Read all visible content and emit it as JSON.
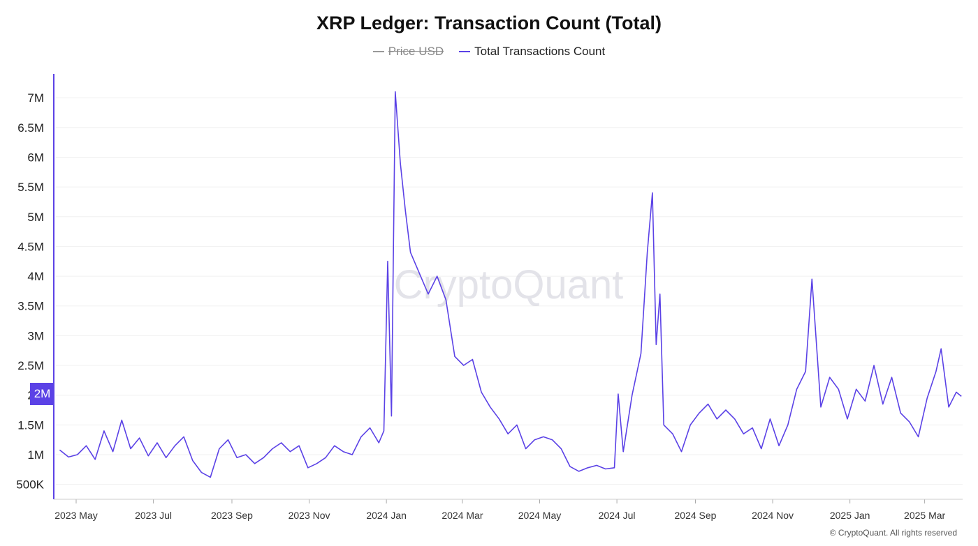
{
  "header": {
    "title": "XRP Ledger: Transaction Count (Total)"
  },
  "legend": [
    {
      "label": "Price USD",
      "color": "#999999",
      "enabled": false
    },
    {
      "label": "Total Transactions Count",
      "color": "#5b42e6",
      "enabled": true
    }
  ],
  "watermark": "CryptoQuant",
  "copyright": "© CryptoQuant. All rights reserved",
  "current_badge": "2M",
  "chart_data": {
    "type": "line",
    "title": "XRP Ledger: Transaction Count (Total)",
    "xlabel": "",
    "ylabel": "",
    "x_range": [
      "2023-04-15",
      "2025-03-31"
    ],
    "ylim": [
      250000,
      7400000
    ],
    "y_ticks": [
      500000,
      1000000,
      1500000,
      2000000,
      2500000,
      3000000,
      3500000,
      4000000,
      4500000,
      5000000,
      5500000,
      6000000,
      6500000,
      7000000
    ],
    "y_tick_labels": [
      "500K",
      "1M",
      "1.5M",
      "2M",
      "2.5M",
      "3M",
      "3.5M",
      "4M",
      "4.5M",
      "5M",
      "5.5M",
      "6M",
      "6.5M",
      "7M"
    ],
    "x_ticks": [
      "2023-05-01",
      "2023-07-01",
      "2023-09-01",
      "2023-11-01",
      "2024-01-01",
      "2024-03-01",
      "2024-05-01",
      "2024-07-01",
      "2024-09-01",
      "2024-11-01",
      "2025-01-01",
      "2025-03-01"
    ],
    "x_tick_labels": [
      "2023 May",
      "2023 Jul",
      "2023 Sep",
      "2023 Nov",
      "2024 Jan",
      "2024 Mar",
      "2024 May",
      "2024 Jul",
      "2024 Sep",
      "2024 Nov",
      "2025 Jan",
      "2025 Mar"
    ],
    "grid": true,
    "legend_position": "top-center",
    "series": [
      {
        "name": "Total Transactions Count",
        "color": "#5b42e6",
        "points": [
          [
            "2023-04-18",
            1080000
          ],
          [
            "2023-04-25",
            960000
          ],
          [
            "2023-05-02",
            1000000
          ],
          [
            "2023-05-09",
            1150000
          ],
          [
            "2023-05-16",
            920000
          ],
          [
            "2023-05-23",
            1400000
          ],
          [
            "2023-05-30",
            1050000
          ],
          [
            "2023-06-06",
            1580000
          ],
          [
            "2023-06-13",
            1100000
          ],
          [
            "2023-06-20",
            1280000
          ],
          [
            "2023-06-27",
            980000
          ],
          [
            "2023-07-04",
            1200000
          ],
          [
            "2023-07-11",
            950000
          ],
          [
            "2023-07-18",
            1150000
          ],
          [
            "2023-07-25",
            1300000
          ],
          [
            "2023-08-01",
            900000
          ],
          [
            "2023-08-08",
            700000
          ],
          [
            "2023-08-15",
            620000
          ],
          [
            "2023-08-22",
            1100000
          ],
          [
            "2023-08-29",
            1250000
          ],
          [
            "2023-09-05",
            950000
          ],
          [
            "2023-09-12",
            1000000
          ],
          [
            "2023-09-19",
            850000
          ],
          [
            "2023-09-26",
            950000
          ],
          [
            "2023-10-03",
            1100000
          ],
          [
            "2023-10-10",
            1200000
          ],
          [
            "2023-10-17",
            1050000
          ],
          [
            "2023-10-24",
            1150000
          ],
          [
            "2023-10-31",
            780000
          ],
          [
            "2023-11-07",
            850000
          ],
          [
            "2023-11-14",
            950000
          ],
          [
            "2023-11-21",
            1150000
          ],
          [
            "2023-11-28",
            1050000
          ],
          [
            "2023-12-05",
            1000000
          ],
          [
            "2023-12-12",
            1300000
          ],
          [
            "2023-12-19",
            1450000
          ],
          [
            "2023-12-26",
            1200000
          ],
          [
            "2023-12-30",
            1400000
          ],
          [
            "2024-01-02",
            4250000
          ],
          [
            "2024-01-05",
            1650000
          ],
          [
            "2024-01-08",
            7100000
          ],
          [
            "2024-01-12",
            5900000
          ],
          [
            "2024-01-16",
            5100000
          ],
          [
            "2024-01-20",
            4400000
          ],
          [
            "2024-01-27",
            4050000
          ],
          [
            "2024-02-03",
            3700000
          ],
          [
            "2024-02-10",
            4000000
          ],
          [
            "2024-02-17",
            3600000
          ],
          [
            "2024-02-24",
            2650000
          ],
          [
            "2024-03-02",
            2500000
          ],
          [
            "2024-03-09",
            2600000
          ],
          [
            "2024-03-16",
            2050000
          ],
          [
            "2024-03-23",
            1800000
          ],
          [
            "2024-03-30",
            1600000
          ],
          [
            "2024-04-06",
            1350000
          ],
          [
            "2024-04-13",
            1500000
          ],
          [
            "2024-04-20",
            1100000
          ],
          [
            "2024-04-27",
            1250000
          ],
          [
            "2024-05-04",
            1300000
          ],
          [
            "2024-05-11",
            1250000
          ],
          [
            "2024-05-18",
            1100000
          ],
          [
            "2024-05-25",
            800000
          ],
          [
            "2024-06-01",
            720000
          ],
          [
            "2024-06-08",
            780000
          ],
          [
            "2024-06-15",
            820000
          ],
          [
            "2024-06-22",
            760000
          ],
          [
            "2024-06-29",
            780000
          ],
          [
            "2024-07-02",
            2020000
          ],
          [
            "2024-07-06",
            1050000
          ],
          [
            "2024-07-13",
            2000000
          ],
          [
            "2024-07-20",
            2700000
          ],
          [
            "2024-07-25",
            4400000
          ],
          [
            "2024-07-29",
            5400000
          ],
          [
            "2024-08-01",
            2850000
          ],
          [
            "2024-08-04",
            3700000
          ],
          [
            "2024-08-07",
            1500000
          ],
          [
            "2024-08-14",
            1350000
          ],
          [
            "2024-08-21",
            1050000
          ],
          [
            "2024-08-28",
            1500000
          ],
          [
            "2024-09-04",
            1700000
          ],
          [
            "2024-09-11",
            1850000
          ],
          [
            "2024-09-18",
            1600000
          ],
          [
            "2024-09-25",
            1750000
          ],
          [
            "2024-10-02",
            1600000
          ],
          [
            "2024-10-09",
            1350000
          ],
          [
            "2024-10-16",
            1450000
          ],
          [
            "2024-10-23",
            1100000
          ],
          [
            "2024-10-30",
            1600000
          ],
          [
            "2024-11-06",
            1150000
          ],
          [
            "2024-11-13",
            1500000
          ],
          [
            "2024-11-20",
            2100000
          ],
          [
            "2024-11-27",
            2400000
          ],
          [
            "2024-12-02",
            3950000
          ],
          [
            "2024-12-09",
            1800000
          ],
          [
            "2024-12-16",
            2300000
          ],
          [
            "2024-12-23",
            2100000
          ],
          [
            "2024-12-30",
            1600000
          ],
          [
            "2025-01-06",
            2100000
          ],
          [
            "2025-01-13",
            1900000
          ],
          [
            "2025-01-20",
            2500000
          ],
          [
            "2025-01-27",
            1850000
          ],
          [
            "2025-02-03",
            2300000
          ],
          [
            "2025-02-10",
            1700000
          ],
          [
            "2025-02-17",
            1550000
          ],
          [
            "2025-02-24",
            1300000
          ],
          [
            "2025-03-03",
            1950000
          ],
          [
            "2025-03-10",
            2400000
          ],
          [
            "2025-03-14",
            2780000
          ],
          [
            "2025-03-20",
            1800000
          ],
          [
            "2025-03-26",
            2050000
          ],
          [
            "2025-03-30",
            1980000
          ]
        ]
      }
    ]
  }
}
